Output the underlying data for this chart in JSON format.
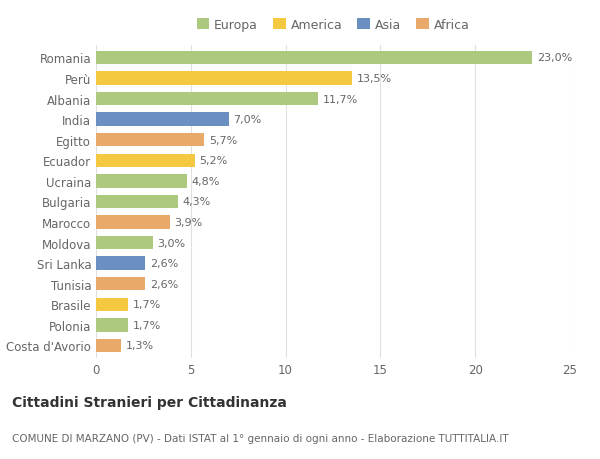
{
  "categories": [
    "Romania",
    "Perù",
    "Albania",
    "India",
    "Egitto",
    "Ecuador",
    "Ucraina",
    "Bulgaria",
    "Marocco",
    "Moldova",
    "Sri Lanka",
    "Tunisia",
    "Brasile",
    "Polonia",
    "Costa d'Avorio"
  ],
  "values": [
    23.0,
    13.5,
    11.7,
    7.0,
    5.7,
    5.2,
    4.8,
    4.3,
    3.9,
    3.0,
    2.6,
    2.6,
    1.7,
    1.7,
    1.3
  ],
  "labels": [
    "23,0%",
    "13,5%",
    "11,7%",
    "7,0%",
    "5,7%",
    "5,2%",
    "4,8%",
    "4,3%",
    "3,9%",
    "3,0%",
    "2,6%",
    "2,6%",
    "1,7%",
    "1,7%",
    "1,3%"
  ],
  "continents": [
    "Europa",
    "America",
    "Europa",
    "Asia",
    "Africa",
    "America",
    "Europa",
    "Europa",
    "Africa",
    "Europa",
    "Asia",
    "Africa",
    "America",
    "Europa",
    "Africa"
  ],
  "colors": {
    "Europa": "#adc980",
    "America": "#f5c842",
    "Asia": "#6a8fc0",
    "Africa": "#e8a96a"
  },
  "legend_labels": [
    "Europa",
    "America",
    "Asia",
    "Africa"
  ],
  "title": "Cittadini Stranieri per Cittadinanza",
  "subtitle": "COMUNE DI MARZANO (PV) - Dati ISTAT al 1° gennaio di ogni anno - Elaborazione TUTTITALIA.IT",
  "xlim": [
    0,
    25
  ],
  "xticks": [
    0,
    5,
    10,
    15,
    20,
    25
  ],
  "background_color": "#ffffff",
  "grid_color": "#e0e0e0",
  "bar_height": 0.65,
  "title_fontsize": 10,
  "subtitle_fontsize": 7.5,
  "label_fontsize": 8,
  "tick_fontsize": 8.5,
  "legend_fontsize": 9
}
